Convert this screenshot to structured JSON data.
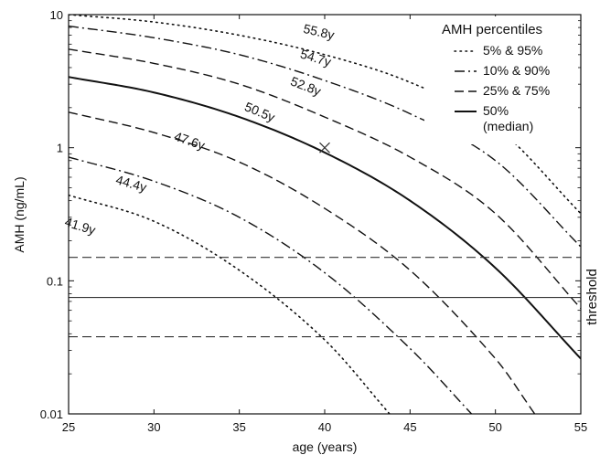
{
  "chart_data": {
    "type": "line",
    "xlabel": "age (years)",
    "ylabel": "AMH (ng/mL)",
    "xlim": [
      25,
      55
    ],
    "ylim": [
      0.01,
      10
    ],
    "yscale": "log",
    "x_ticks": [
      25,
      30,
      35,
      40,
      45,
      50,
      55
    ],
    "y_ticks": [
      {
        "value": 0.01,
        "label": "0.01"
      },
      {
        "value": 0.1,
        "label": "0.1"
      },
      {
        "value": 1,
        "label": "1"
      },
      {
        "value": 10,
        "label": "10"
      }
    ],
    "grid": false,
    "legend": {
      "title": "AMH percentiles",
      "placement": "top-right",
      "entries": [
        {
          "style": "dotted",
          "label": "5% & 95%"
        },
        {
          "style": "dashdot",
          "label": "10% & 90%"
        },
        {
          "style": "dashed",
          "label": "25% & 75%"
        },
        {
          "style": "solid",
          "label": "50%",
          "label2": "(median)"
        }
      ]
    },
    "series": [
      {
        "percentile": 95,
        "style": "dotted",
        "curve_label": "55.8y",
        "label_x": 39.6,
        "label_y": 6.9,
        "points": [
          [
            25,
            10.0
          ],
          [
            30,
            8.8
          ],
          [
            35,
            7.0
          ],
          [
            40,
            5.0
          ],
          [
            45,
            3.1
          ],
          [
            50,
            1.45
          ],
          [
            55,
            0.32
          ]
        ]
      },
      {
        "percentile": 90,
        "style": "dashdot",
        "curve_label": "54.7y",
        "label_x": 39.4,
        "label_y": 4.4,
        "points": [
          [
            25,
            8.2
          ],
          [
            30,
            6.7
          ],
          [
            35,
            5.0
          ],
          [
            40,
            3.2
          ],
          [
            45,
            1.8
          ],
          [
            50,
            0.8
          ],
          [
            55,
            0.18
          ]
        ]
      },
      {
        "percentile": 75,
        "style": "dashed",
        "curve_label": "52.8y",
        "label_x": 38.8,
        "label_y": 2.7,
        "points": [
          [
            25,
            5.5
          ],
          [
            30,
            4.3
          ],
          [
            35,
            3.0
          ],
          [
            40,
            1.7
          ],
          [
            45,
            0.85
          ],
          [
            50,
            0.32
          ],
          [
            55,
            0.062
          ]
        ]
      },
      {
        "percentile": 50,
        "style": "solid",
        "curve_label": "50.5y",
        "label_x": 36.1,
        "label_y": 1.73,
        "points": [
          [
            25,
            3.4
          ],
          [
            30,
            2.6
          ],
          [
            35,
            1.7
          ],
          [
            40,
            0.92
          ],
          [
            45,
            0.4
          ],
          [
            50,
            0.125
          ],
          [
            55,
            0.026
          ]
        ]
      },
      {
        "percentile": 25,
        "style": "dashed",
        "curve_label": "47.6y",
        "label_x": 32.0,
        "label_y": 1.05,
        "points": [
          [
            25,
            1.85
          ],
          [
            30,
            1.3
          ],
          [
            35,
            0.78
          ],
          [
            40,
            0.35
          ],
          [
            45,
            0.12
          ],
          [
            50,
            0.026
          ],
          [
            52.3,
            0.01
          ]
        ]
      },
      {
        "percentile": 10,
        "style": "dashdot",
        "curve_label": "44.4y",
        "label_x": 28.6,
        "label_y": 0.5,
        "points": [
          [
            25,
            0.85
          ],
          [
            30,
            0.56
          ],
          [
            35,
            0.3
          ],
          [
            40,
            0.115
          ],
          [
            45,
            0.031
          ],
          [
            48.6,
            0.01
          ]
        ]
      },
      {
        "percentile": 5,
        "style": "dotted",
        "curve_label": "41.9y",
        "label_x": 25.6,
        "label_y": 0.24,
        "points": [
          [
            25,
            0.44
          ],
          [
            30,
            0.28
          ],
          [
            35,
            0.12
          ],
          [
            40,
            0.036
          ],
          [
            43.8,
            0.01
          ]
        ]
      }
    ],
    "threshold_label": "threshold",
    "thresholds": [
      {
        "value": 0.15,
        "style": "dashed"
      },
      {
        "value": 0.075,
        "style": "solid"
      },
      {
        "value": 0.038,
        "style": "dashed"
      }
    ],
    "marker": {
      "x": 40,
      "y": 1.0,
      "symbol": "x"
    }
  }
}
